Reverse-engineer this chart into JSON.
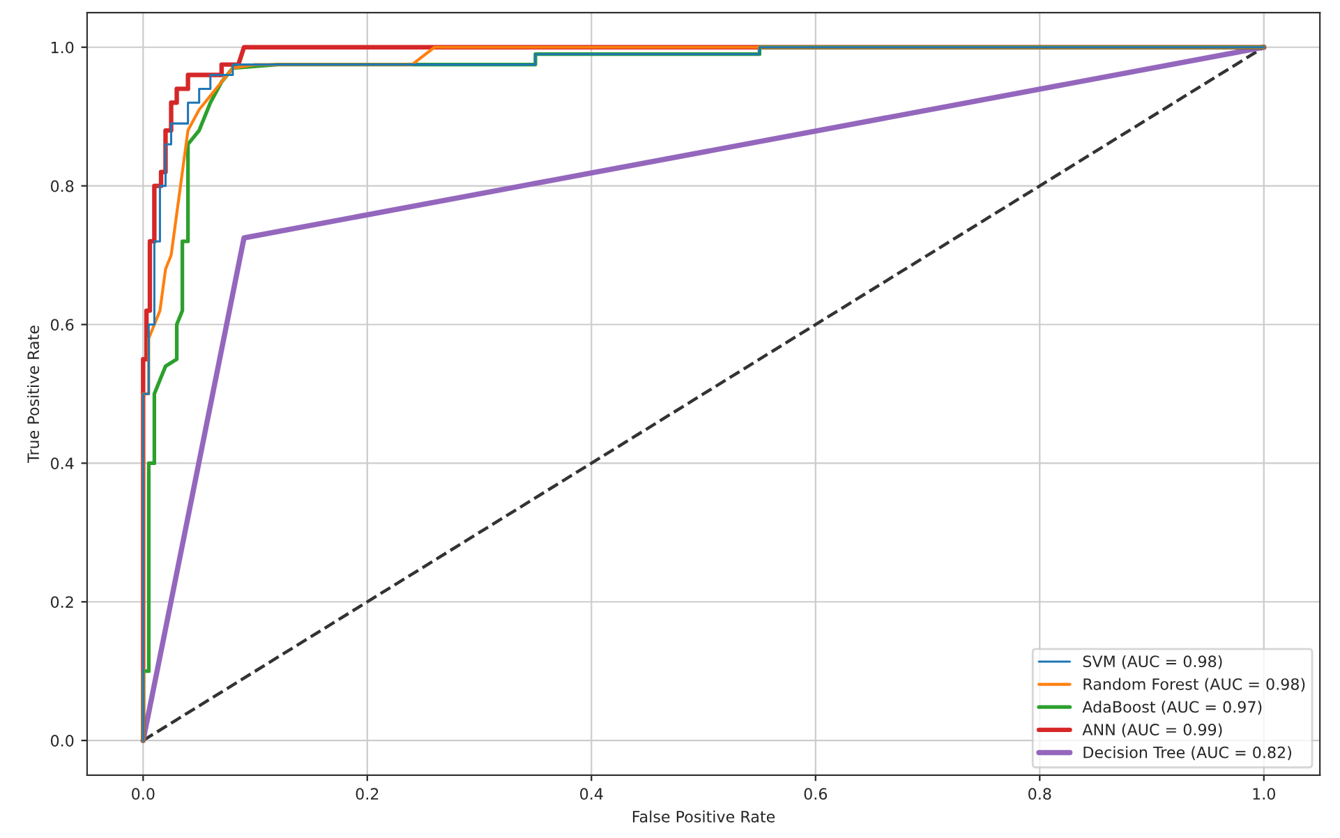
{
  "chart_data": {
    "type": "line",
    "xlabel": "False Positive Rate",
    "ylabel": "True Positive Rate",
    "xlim": [
      -0.05,
      1.05
    ],
    "ylim": [
      -0.05,
      1.05
    ],
    "xticks": [
      {
        "value": 0,
        "label": "0.0"
      },
      {
        "value": 0.2,
        "label": "0.2"
      },
      {
        "value": 0.4,
        "label": "0.4"
      },
      {
        "value": 0.6,
        "label": "0.6"
      },
      {
        "value": 0.8,
        "label": "0.8"
      },
      {
        "value": 1,
        "label": "1.0"
      }
    ],
    "yticks": [
      {
        "value": 0,
        "label": "0.0"
      },
      {
        "value": 0.2,
        "label": "0.2"
      },
      {
        "value": 0.4,
        "label": "0.4"
      },
      {
        "value": 0.6,
        "label": "0.6"
      },
      {
        "value": 0.8,
        "label": "0.8"
      },
      {
        "value": 1,
        "label": "1.0"
      }
    ],
    "grid": true,
    "legend": "bottom right",
    "series": [
      {
        "name": "SVM (AUC = 0.98)",
        "color": "#1f77b4",
        "x": [
          0,
          0,
          0.005,
          0.005,
          0.01,
          0.01,
          0.015,
          0.015,
          0.02,
          0.02,
          0.025,
          0.025,
          0.04,
          0.04,
          0.05,
          0.05,
          0.06,
          0.06,
          0.08,
          0.08,
          0.35,
          0.35,
          0.55,
          0.55,
          1
        ],
        "values": [
          0,
          0.5,
          0.5,
          0.6,
          0.6,
          0.72,
          0.72,
          0.8,
          0.8,
          0.86,
          0.86,
          0.89,
          0.89,
          0.92,
          0.92,
          0.94,
          0.94,
          0.96,
          0.96,
          0.975,
          0.975,
          0.99,
          0.99,
          1,
          1
        ]
      },
      {
        "name": "Random Forest (AUC = 0.98)",
        "color": "#ff7f0e",
        "x": [
          0,
          0,
          0.005,
          0.005,
          0.01,
          0.015,
          0.02,
          0.025,
          0.03,
          0.035,
          0.04,
          0.05,
          0.06,
          0.07,
          0.08,
          0.1,
          0.24,
          0.26,
          1
        ],
        "values": [
          0,
          0.5,
          0.5,
          0.58,
          0.6,
          0.62,
          0.68,
          0.7,
          0.76,
          0.82,
          0.88,
          0.91,
          0.93,
          0.95,
          0.97,
          0.975,
          0.975,
          1,
          1
        ]
      },
      {
        "name": "AdaBoost (AUC = 0.97)",
        "color": "#2ca02c",
        "x": [
          0,
          0,
          0.005,
          0.005,
          0.01,
          0.01,
          0.015,
          0.02,
          0.03,
          0.03,
          0.035,
          0.035,
          0.04,
          0.04,
          0.05,
          0.06,
          0.07,
          0.08,
          0.12,
          0.35,
          0.35,
          0.55,
          0.55,
          1
        ],
        "values": [
          0,
          0.1,
          0.1,
          0.4,
          0.4,
          0.5,
          0.52,
          0.54,
          0.55,
          0.6,
          0.62,
          0.72,
          0.72,
          0.86,
          0.88,
          0.92,
          0.95,
          0.97,
          0.975,
          0.975,
          0.99,
          0.99,
          1,
          1
        ]
      },
      {
        "name": "ANN (AUC = 0.99)",
        "color": "#d62728",
        "x": [
          0,
          0,
          0.003,
          0.003,
          0.006,
          0.006,
          0.01,
          0.01,
          0.016,
          0.016,
          0.02,
          0.02,
          0.025,
          0.025,
          0.03,
          0.03,
          0.04,
          0.04,
          0.07,
          0.07,
          0.085,
          0.09,
          1
        ],
        "values": [
          0,
          0.55,
          0.55,
          0.62,
          0.62,
          0.72,
          0.72,
          0.8,
          0.8,
          0.82,
          0.82,
          0.88,
          0.88,
          0.92,
          0.92,
          0.94,
          0.94,
          0.96,
          0.96,
          0.975,
          0.975,
          1,
          1
        ]
      },
      {
        "name": "Decision Tree (AUC = 0.82)",
        "color": "#9467bd",
        "x": [
          0,
          0.09,
          1
        ],
        "values": [
          0,
          0.725,
          1
        ]
      },
      {
        "color": "#333333",
        "line_style": "dashed",
        "x": [
          0,
          1
        ],
        "values": [
          0,
          1
        ]
      }
    ]
  }
}
